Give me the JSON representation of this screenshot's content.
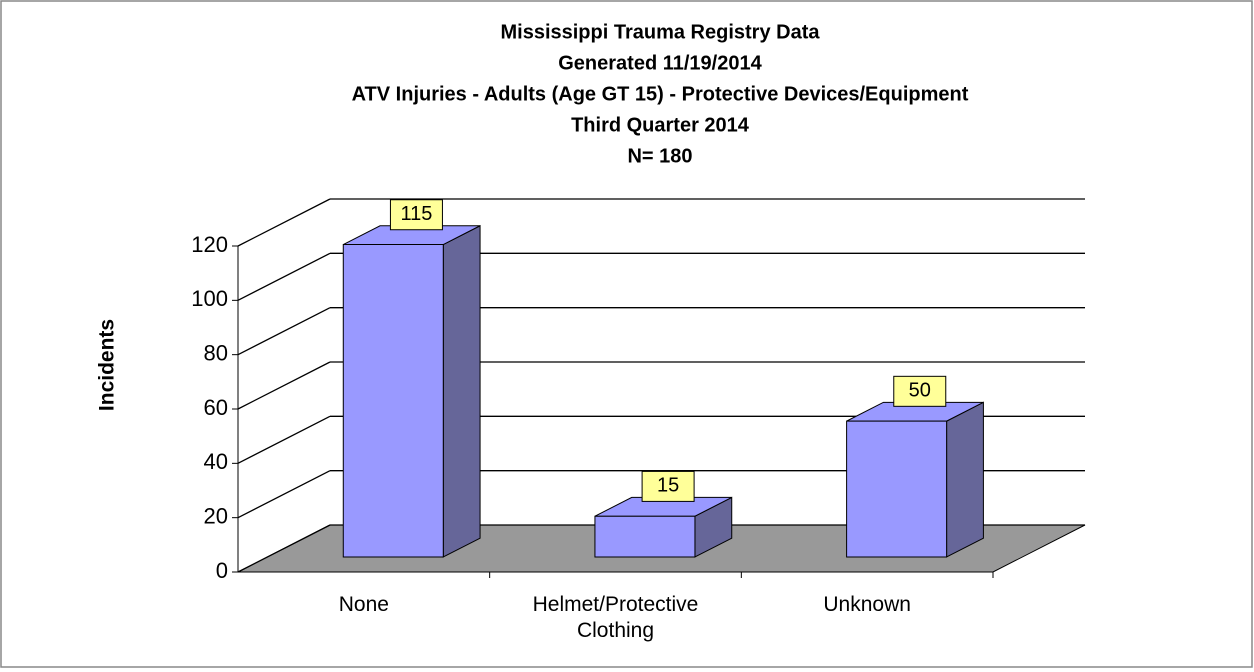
{
  "chart_data": {
    "type": "bar3d",
    "title": [
      "Mississippi Trauma Registry Data",
      "Generated 11/19/2014",
      "ATV Injuries - Adults (Age GT 15) - Protective Devices/Equipment",
      "Third Quarter 2014",
      "N= 180"
    ],
    "ylabel": "Incidents",
    "categories": [
      "None",
      "Helmet/Protective Clothing",
      "Unknown"
    ],
    "values": [
      115,
      15,
      50
    ],
    "color": "#9999ff",
    "ylim": [
      0,
      120
    ],
    "yticks": [
      0,
      20,
      40,
      60,
      80,
      100,
      120
    ],
    "grid": true
  }
}
